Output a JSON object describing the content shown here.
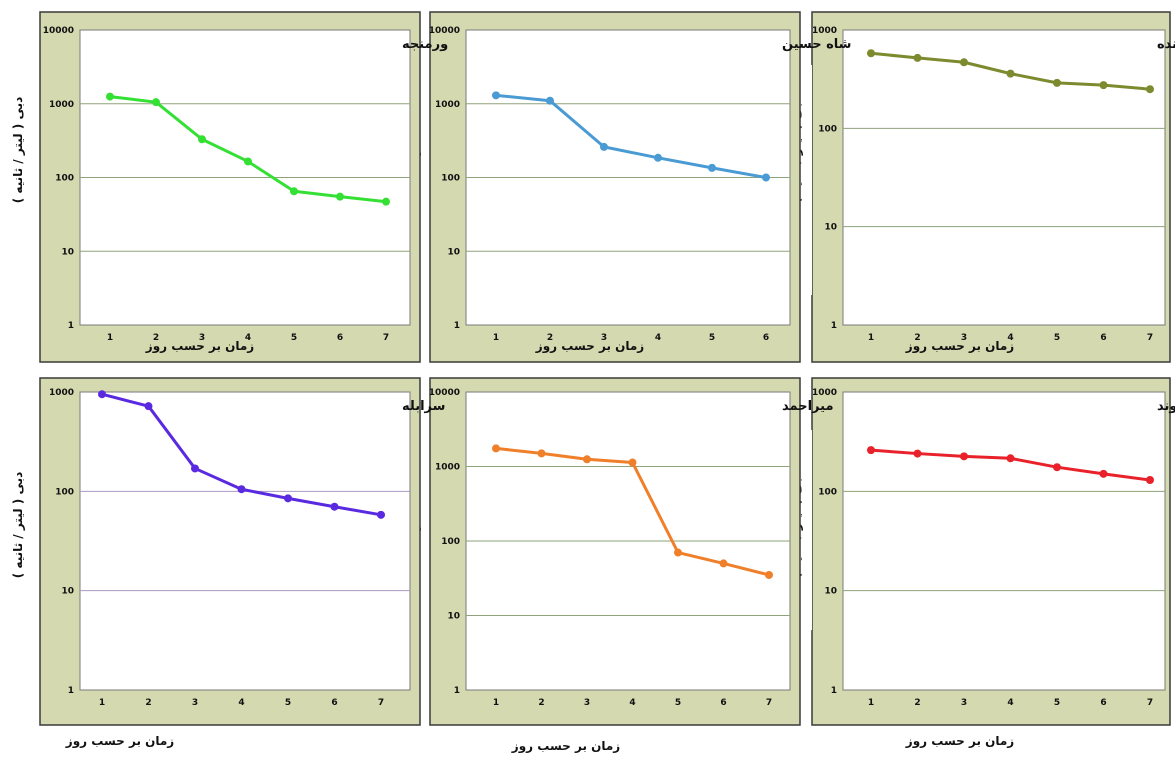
{
  "chart_data": [
    {
      "type": "line",
      "title": "خضرزنده",
      "xlabel": "زمان بر حسب روز",
      "ylabel": "دبی ( لیتر / ثانیه )",
      "yscale": "log",
      "ylim": [
        1,
        1000
      ],
      "yticks": [
        "1",
        "10",
        "100",
        "1000"
      ],
      "categories": [
        "1",
        "2",
        "3",
        "4",
        "5",
        "6",
        "7"
      ],
      "series": [
        {
          "values": [
            580,
            520,
            470,
            360,
            290,
            275,
            250
          ]
        }
      ],
      "color": "#7d8a2e",
      "grid": "horizontal",
      "grid_color": "#8ea37a"
    },
    {
      "type": "line",
      "title": "شاه حسین",
      "xlabel": "زمان بر حسب روز",
      "ylabel": "دبی ( لیتر / ثانیه )",
      "yscale": "log",
      "ylim": [
        1,
        10000
      ],
      "yticks": [
        "1",
        "10",
        "100",
        "1000",
        "10000"
      ],
      "categories": [
        "1",
        "2",
        "3",
        "4",
        "5",
        "6"
      ],
      "series": [
        {
          "values": [
            1300,
            1100,
            260,
            185,
            135,
            100
          ]
        }
      ],
      "color": "#4a9ad4",
      "grid": "horizontal",
      "grid_color": "#8ea37a"
    },
    {
      "type": "line",
      "title": "ورمنجه",
      "xlabel": "زمان بر حسب روز",
      "ylabel": "دبی ( لیتر / ثانیه )",
      "yscale": "log",
      "ylim": [
        1,
        10000
      ],
      "yticks": [
        "1",
        "10",
        "100",
        "1000",
        "10000"
      ],
      "categories": [
        "1",
        "2",
        "3",
        "4",
        "5",
        "6",
        "7"
      ],
      "series": [
        {
          "values": [
            1250,
            1050,
            330,
            165,
            65,
            55,
            47
          ]
        }
      ],
      "color": "#33e033",
      "grid": "horizontal",
      "grid_color": "#8ea37a"
    },
    {
      "type": "line",
      "title": "قلاع قیسوند",
      "xlabel": "زمان بر حسب روز",
      "ylabel": "دبی ( لیتر / ثانیه )",
      "yscale": "log",
      "ylim": [
        1,
        1000
      ],
      "yticks": [
        "1",
        "10",
        "100",
        "1000"
      ],
      "categories": [
        "1",
        "2",
        "3",
        "4",
        "5",
        "6",
        "7"
      ],
      "series": [
        {
          "values": [
            260,
            240,
            225,
            215,
            175,
            150,
            130
          ]
        }
      ],
      "color": "#e8212a",
      "grid": "horizontal",
      "grid_color": "#8ea37a"
    },
    {
      "type": "line",
      "title": "میراحمد",
      "xlabel": "زمان بر حسب روز",
      "ylabel": "دبی ( لیتر / ثانیه )",
      "yscale": "log",
      "ylim": [
        1,
        10000
      ],
      "yticks": [
        "1",
        "10",
        "100",
        "1000",
        "10000"
      ],
      "categories": [
        "1",
        "2",
        "3",
        "4",
        "5",
        "6",
        "7"
      ],
      "series": [
        {
          "values": [
            1750,
            1500,
            1250,
            1130,
            70,
            50,
            35
          ]
        }
      ],
      "color": "#f07f2a",
      "grid": "horizontal",
      "grid_color": "#8ea37a"
    },
    {
      "type": "line",
      "title": "سرابله",
      "xlabel": "زمان بر حسب روز",
      "ylabel": "دبی ( لیتر / ثانیه )",
      "yscale": "log",
      "ylim": [
        1,
        1000
      ],
      "yticks": [
        "1",
        "10",
        "100",
        "1000"
      ],
      "categories": [
        "1",
        "2",
        "3",
        "4",
        "5",
        "6",
        "7"
      ],
      "series": [
        {
          "values": [
            950,
            720,
            170,
            105,
            85,
            70,
            58
          ]
        }
      ],
      "color": "#5a2ae0",
      "grid": "horizontal",
      "grid_color": "#a89ac0"
    }
  ]
}
